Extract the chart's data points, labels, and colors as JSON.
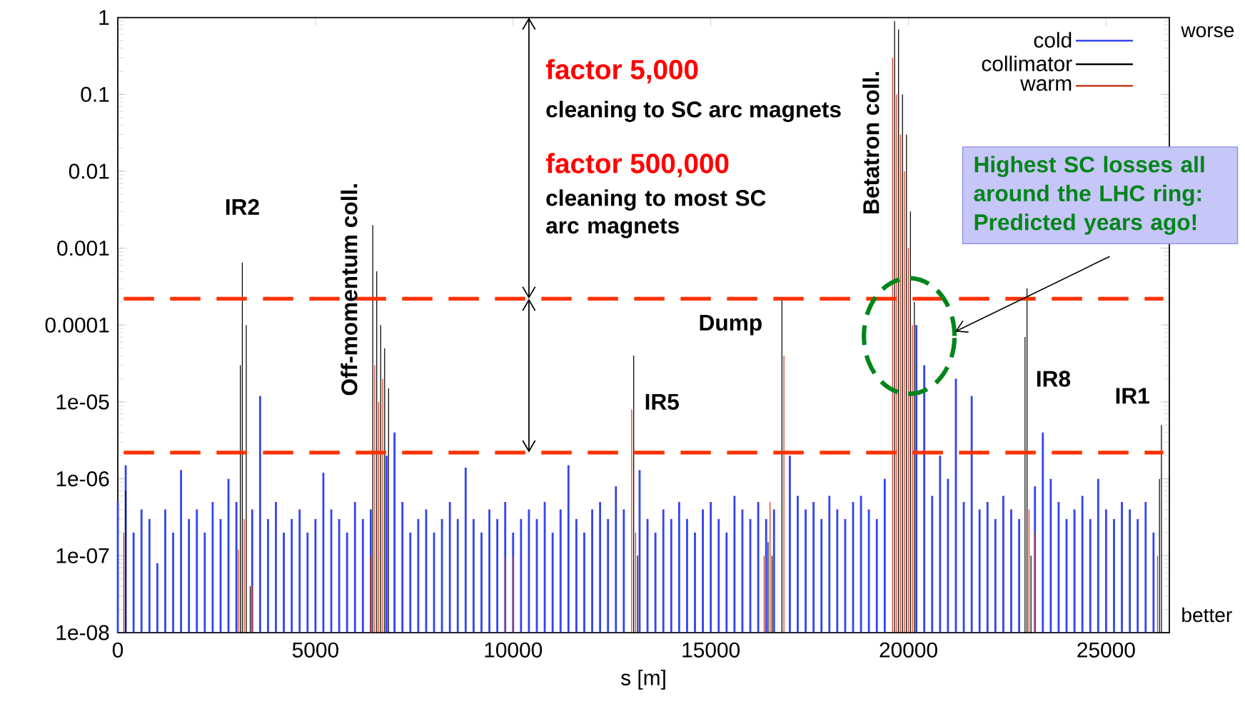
{
  "chart_data": {
    "type": "bar",
    "xlabel": "s [m]",
    "log": "y",
    "legend": "top right",
    "xlim": [
      0,
      26600
    ],
    "ylim": [
      1e-08,
      1
    ],
    "xticks": [
      0,
      5000,
      10000,
      15000,
      20000,
      25000
    ],
    "yticks": [
      {
        "value": 1e-08,
        "label": "1e-08"
      },
      {
        "value": 1e-07,
        "label": "1e-07"
      },
      {
        "value": 1e-06,
        "label": "1e-06"
      },
      {
        "value": 1e-05,
        "label": "1e-05"
      },
      {
        "value": 0.0001,
        "label": "0.0001"
      },
      {
        "value": 0.001,
        "label": "0.001"
      },
      {
        "value": 0.01,
        "label": "0.01"
      },
      {
        "value": 0.1,
        "label": "0.1"
      },
      {
        "value": 1,
        "label": "1"
      }
    ],
    "series": [
      {
        "name": "cold",
        "color": "#3344ee",
        "x": [
          0,
          200,
          400,
          600,
          800,
          1000,
          1200,
          1400,
          1600,
          1800,
          2000,
          2200,
          2400,
          2600,
          2800,
          3000,
          3200,
          3400,
          3600,
          3800,
          4000,
          4200,
          4400,
          4600,
          4800,
          5000,
          5200,
          5400,
          5600,
          5800,
          6000,
          6200,
          6400,
          6600,
          6800,
          7000,
          7200,
          7400,
          7600,
          7800,
          8000,
          8200,
          8400,
          8600,
          8800,
          9000,
          9200,
          9400,
          9600,
          9800,
          10000,
          10200,
          10400,
          10600,
          10800,
          11000,
          11200,
          11400,
          11600,
          11800,
          12000,
          12200,
          12400,
          12600,
          12800,
          13000,
          13200,
          13400,
          13600,
          13800,
          14000,
          14200,
          14400,
          14600,
          14800,
          15000,
          15200,
          15400,
          15600,
          15800,
          16000,
          16200,
          16400,
          16600,
          16800,
          17000,
          17200,
          17400,
          17600,
          17800,
          18000,
          18200,
          18400,
          18600,
          18800,
          19000,
          19200,
          19400,
          19600,
          19800,
          20000,
          20200,
          20400,
          20600,
          20800,
          21000,
          21200,
          21400,
          21600,
          21800,
          22000,
          22200,
          22400,
          22600,
          22800,
          23000,
          23200,
          23400,
          23600,
          23800,
          24000,
          24200,
          24400,
          24600,
          24800,
          25000,
          25200,
          25400,
          25600,
          25800,
          26000,
          26200
        ],
        "values": [
          5e-07,
          1.5e-06,
          2e-07,
          4e-07,
          3e-07,
          8e-08,
          4e-07,
          2e-07,
          1.3e-06,
          3e-07,
          4e-07,
          2e-07,
          5e-07,
          3e-07,
          1e-06,
          5e-07,
          null,
          4e-07,
          1.2e-05,
          3e-07,
          5e-07,
          2e-07,
          3e-07,
          4e-07,
          2e-07,
          3e-07,
          1.2e-06,
          4e-07,
          3e-07,
          2e-07,
          5e-07,
          3e-07,
          4e-07,
          null,
          2e-06,
          4e-06,
          5e-07,
          2e-07,
          3e-07,
          4e-07,
          2e-07,
          3e-07,
          5e-07,
          3e-07,
          1.4e-06,
          3e-07,
          2e-07,
          4e-07,
          3e-07,
          5e-07,
          2e-07,
          3e-07,
          4e-07,
          3e-07,
          5e-07,
          2e-07,
          4e-07,
          1.5e-06,
          3e-07,
          2e-07,
          4e-07,
          5e-07,
          3e-07,
          8e-07,
          4e-07,
          null,
          1.3e-06,
          3e-07,
          2e-07,
          4e-07,
          3e-07,
          5e-07,
          3e-07,
          2e-07,
          4e-07,
          5e-07,
          3e-07,
          2e-07,
          6e-07,
          4e-07,
          3e-07,
          5e-07,
          3e-07,
          4e-07,
          null,
          2e-06,
          6e-07,
          4e-07,
          5e-07,
          3e-07,
          6e-07,
          4e-07,
          3e-07,
          5e-07,
          6e-07,
          4e-07,
          3e-07,
          1e-06,
          null,
          null,
          null,
          0.0001,
          3e-05,
          6e-07,
          2e-06,
          1e-06,
          2e-05,
          5e-07,
          1.2e-05,
          4e-07,
          5e-07,
          3e-07,
          6e-07,
          4e-07,
          3e-07,
          null,
          8e-07,
          4e-06,
          1e-06,
          5e-07,
          3e-07,
          4e-07,
          6e-07,
          3e-07,
          1e-06,
          4e-07,
          3e-07,
          5e-07,
          4e-07,
          3e-07,
          5e-07,
          2e-07
        ]
      },
      {
        "name": "collimator",
        "color": "#000000",
        "x": [
          200,
          3100,
          3150,
          3250,
          3350,
          6450,
          6550,
          6650,
          6750,
          6850,
          13050,
          13150,
          16450,
          16550,
          16800,
          19650,
          19750,
          19850,
          19950,
          20050,
          20150,
          22950,
          23000,
          23100,
          26350,
          26400
        ],
        "values": [
          7e-07,
          3e-05,
          0.00065,
          0.0001,
          4e-08,
          0.002,
          0.0005,
          0.0001,
          5e-05,
          1.5e-05,
          4e-05,
          1e-07,
          1.5e-07,
          1e-07,
          0.00022,
          0.9,
          0.7,
          0.1,
          0.03,
          0.003,
          0.0002,
          7e-05,
          0.0003,
          1e-07,
          1e-06,
          5e-06
        ]
      },
      {
        "name": "warm",
        "color": "#cc3a1c",
        "x": [
          150,
          3050,
          3200,
          3400,
          6400,
          6500,
          6600,
          6700,
          9800,
          10000,
          13000,
          13100,
          16350,
          16500,
          16850,
          19600,
          19700,
          19800,
          19900,
          20000,
          20100,
          23050,
          23200,
          26300
        ],
        "values": [
          2e-07,
          1.2e-07,
          3e-07,
          4e-08,
          1e-07,
          3e-05,
          1e-05,
          2e-05,
          1e-07,
          1e-07,
          8e-06,
          2e-07,
          1e-07,
          5e-07,
          4e-05,
          0.3,
          0.1,
          0.03,
          0.01,
          0.001,
          0.0001,
          4e-07,
          2e-07,
          1e-07
        ]
      }
    ],
    "ref_lines": [
      {
        "axis": "y",
        "value": 0.00022,
        "color": "#ff3300",
        "line_style": "dashed"
      },
      {
        "axis": "y",
        "value": 2.2e-06,
        "color": "#ff3300",
        "line_style": "dashed"
      }
    ],
    "annotations": [
      "IR2",
      "Off-momentum coll.",
      "Dump",
      "IR5",
      "Betatron coll.",
      "IR8",
      "IR1",
      "factor 5,000",
      "cleaning to SC arc magnets",
      "factor 500,000",
      "cleaning to most SC arc magnets",
      "Highest SC losses all around the LHC ring: Predicted years ago!",
      "worse",
      "better"
    ]
  }
}
